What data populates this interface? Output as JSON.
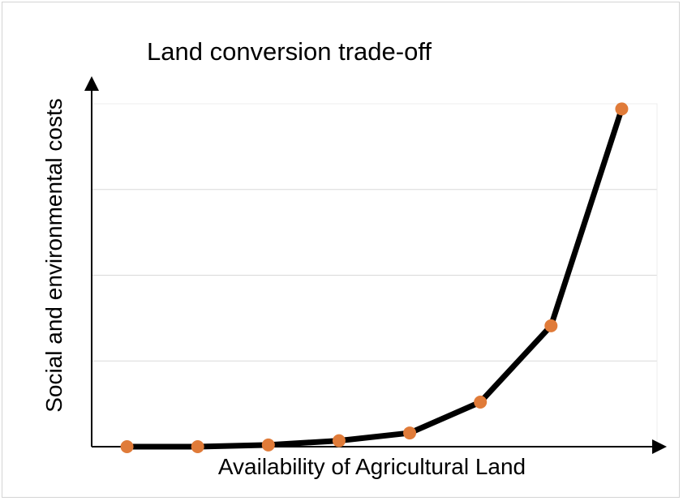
{
  "chart_data": {
    "type": "line",
    "title": "Land conversion trade-off",
    "xlabel": "Availability of Agricultural Land",
    "ylabel": "Social and environmental costs",
    "x": [
      1,
      2,
      3,
      4,
      5,
      6,
      7,
      8
    ],
    "series": [
      {
        "values": [
          0,
          0,
          0.2,
          0.7,
          1.6,
          5.2,
          14.1,
          39.4
        ]
      }
    ],
    "xlim": [
      0.5,
      8.5
    ],
    "ylim": [
      0,
      40
    ],
    "grid": true,
    "x_ticks_shown": false,
    "y_ticks_shown": false,
    "legend": "none",
    "colors": {
      "line": "#000000",
      "marker": "#e07b39",
      "grid": "#d9d9d9",
      "axis": "#000000"
    }
  }
}
